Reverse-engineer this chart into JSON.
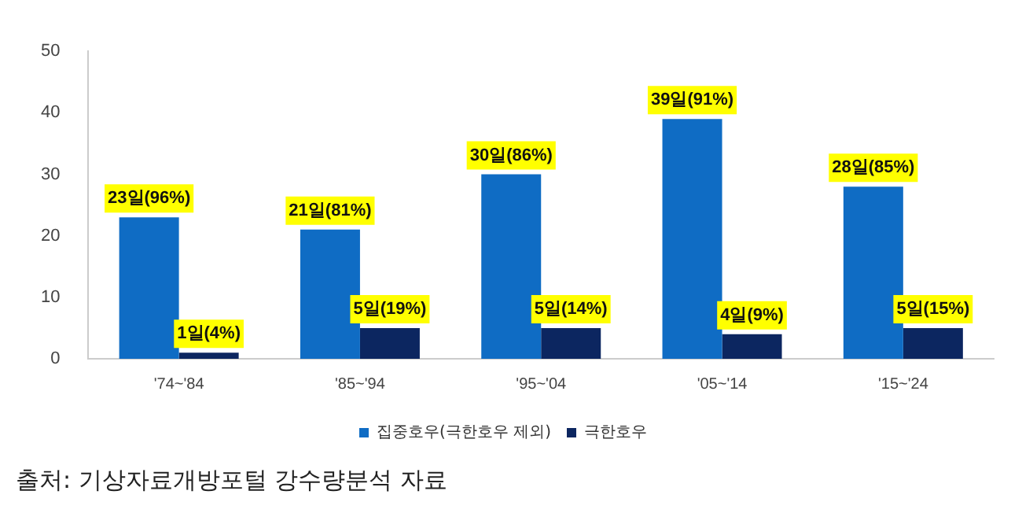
{
  "chart_data": {
    "type": "bar",
    "categories": [
      "'74~'84",
      "'85~'94",
      "'95~'04",
      "'05~'14",
      "'15~'24"
    ],
    "series": [
      {
        "name": "집중호우(극한호우 제외)",
        "color": "#0f6cc4",
        "values": [
          23,
          21,
          30,
          39,
          28
        ],
        "value_labels": [
          "23일(96%)",
          "21일(81%)",
          "30일(86%)",
          "39일(91%)",
          "28일(85%)"
        ]
      },
      {
        "name": "극한호우",
        "color": "#0c2660",
        "values": [
          1,
          5,
          5,
          4,
          5
        ],
        "value_labels": [
          "1일(4%)",
          "5일(19%)",
          "5일(14%)",
          "4일(9%)",
          "5일(15%)"
        ]
      }
    ],
    "ylim": [
      0,
      50
    ],
    "yticks": [
      0,
      10,
      20,
      30,
      40,
      50
    ],
    "grid": false,
    "legend": "bottom",
    "annotations": [
      "출처: 기상자료개방포털 강수량분석 자료"
    ]
  }
}
